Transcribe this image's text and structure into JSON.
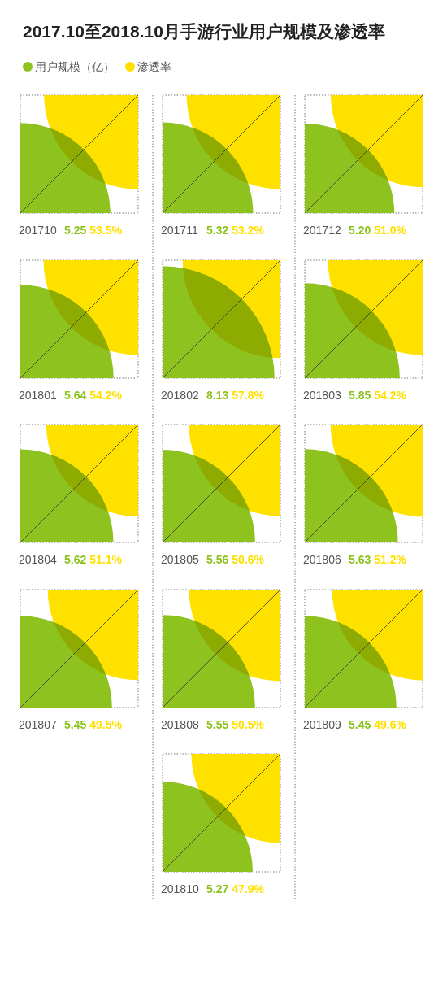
{
  "chart_data": {
    "type": "other",
    "title": "2017.10至2018.10月手游行业用户规模及渗透率",
    "legend": "top left",
    "categories": [
      "201710",
      "201711",
      "201712",
      "201801",
      "201802",
      "201803",
      "201804",
      "201805",
      "201806",
      "201807",
      "201808",
      "201809",
      "201810"
    ],
    "series": [
      {
        "name": "用户规模（亿）",
        "color": "#8dc21f",
        "values": [
          5.25,
          5.32,
          5.2,
          5.64,
          8.13,
          5.85,
          5.62,
          5.56,
          5.63,
          5.45,
          5.55,
          5.45,
          5.27
        ],
        "value_labels": [
          "5.25",
          "5.32",
          "5.20",
          "5.64",
          "8.13",
          "5.85",
          "5.62",
          "5.56",
          "5.63",
          "5.45",
          "5.55",
          "5.45",
          "5.27"
        ]
      },
      {
        "name": "渗透率",
        "color": "#ffe100",
        "values": [
          53.5,
          53.2,
          51.0,
          54.2,
          57.8,
          54.2,
          51.1,
          50.6,
          51.2,
          49.5,
          50.5,
          49.6,
          47.9
        ],
        "value_labels": [
          "53.5%",
          "53.2%",
          "51.0%",
          "54.2%",
          "57.8%",
          "54.2%",
          "51.1%",
          "50.6%",
          "51.2%",
          "49.5%",
          "50.5%",
          "49.6%",
          "47.9%"
        ]
      }
    ]
  }
}
